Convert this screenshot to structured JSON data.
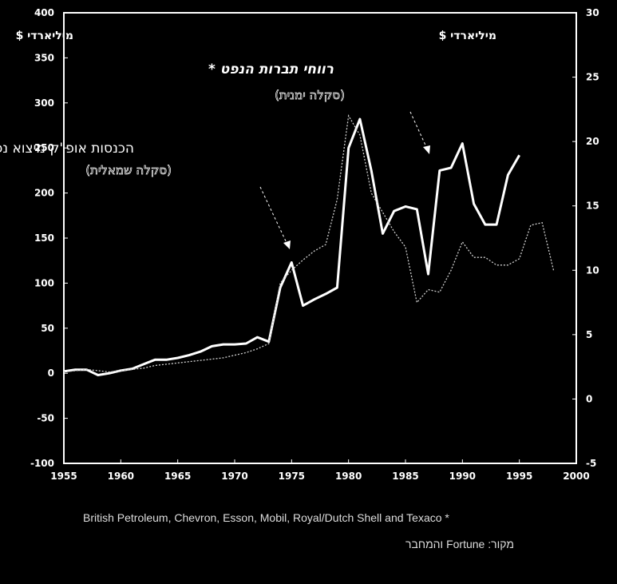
{
  "chart_data": {
    "type": "line",
    "x_ticks": [
      1955,
      1960,
      1965,
      1970,
      1975,
      1980,
      1985,
      1990,
      1995,
      2000
    ],
    "left_axis": {
      "unit_label": "מיליארדי $",
      "ticks": [
        400,
        350,
        300,
        250,
        200,
        150,
        100,
        50,
        0,
        -50,
        "-100"
      ],
      "range": [
        -100,
        400
      ]
    },
    "right_axis": {
      "unit_label": "מיליארדי $",
      "ticks": [
        30,
        25,
        20,
        15,
        10,
        5,
        0,
        -5
      ],
      "range": [
        -5,
        30
      ]
    },
    "grid": false,
    "series": [
      {
        "name": "הכנסות אופ\"ק מיצוא נפט",
        "sublabel": "(סקלה שמאלית)",
        "axis": "left",
        "style": "thick-solid",
        "x": [
          1955,
          1956,
          1957,
          1958,
          1959,
          1960,
          1961,
          1962,
          1963,
          1964,
          1965,
          1966,
          1967,
          1968,
          1969,
          1970,
          1971,
          1972,
          1973,
          1974,
          1975,
          1976,
          1977,
          1978,
          1979,
          1980,
          1981,
          1982,
          1983,
          1984,
          1985,
          1986,
          1987,
          1988,
          1989,
          1990,
          1991,
          1992,
          1993,
          1994,
          1995
        ],
        "y": [
          2,
          4,
          4,
          -2,
          0,
          3,
          5,
          10,
          15,
          15,
          17,
          20,
          24,
          30,
          32,
          32,
          33,
          40,
          35,
          95,
          123,
          75,
          82,
          88,
          95,
          250,
          282,
          225,
          155,
          180,
          185,
          182,
          110,
          225,
          228,
          255,
          188,
          165,
          165,
          220,
          242
        ]
      },
      {
        "name": "רווחי תברות הנפט",
        "sublabel": "(סקלה ימנית)",
        "axis": "right",
        "style": "thin-dotted",
        "x": [
          1955,
          1956,
          1957,
          1958,
          1959,
          1960,
          1961,
          1962,
          1963,
          1964,
          1965,
          1966,
          1967,
          1968,
          1969,
          1970,
          1971,
          1972,
          1973,
          1974,
          1975,
          1976,
          1977,
          1978,
          1979,
          1980,
          1981,
          1982,
          1983,
          1984,
          1985,
          1986,
          1987,
          1988,
          1989,
          1990,
          1991,
          1992,
          1993,
          1994,
          1995,
          1996,
          1997,
          1998
        ],
        "y": [
          2.1,
          2.2,
          2.3,
          2.2,
          2.1,
          2.2,
          2.3,
          2.4,
          2.6,
          2.7,
          2.8,
          2.9,
          3.0,
          3.1,
          3.2,
          3.4,
          3.6,
          3.9,
          4.3,
          9.0,
          10.0,
          10.8,
          11.5,
          12.0,
          15.5,
          22.0,
          20.5,
          16.0,
          14.5,
          13.0,
          11.8,
          7.5,
          8.5,
          8.3,
          10.0,
          12.2,
          11.0,
          11.0,
          10.4,
          10.4,
          10.9,
          13.5,
          13.7,
          10.0
        ]
      }
    ]
  },
  "annotations": {
    "opec_title": "הכנסות אופ\"ק מיצוא נפט",
    "opec_scale": "(סקלה שמאלית)",
    "companies_title": "רווחי תברות הנפט *",
    "companies_scale": "(סקלה ימנית)"
  },
  "footnotes": {
    "companies": "British Petroleum, Chevron, Esson, Mobil, Royal/Dutch Shell and Texaco *",
    "source": "מקור: Fortune והמחבר"
  },
  "colors": {
    "background": "#000000",
    "frame": "#ffffff",
    "opec_line": "#ffffff",
    "companies_line": "#cfcfcf"
  }
}
